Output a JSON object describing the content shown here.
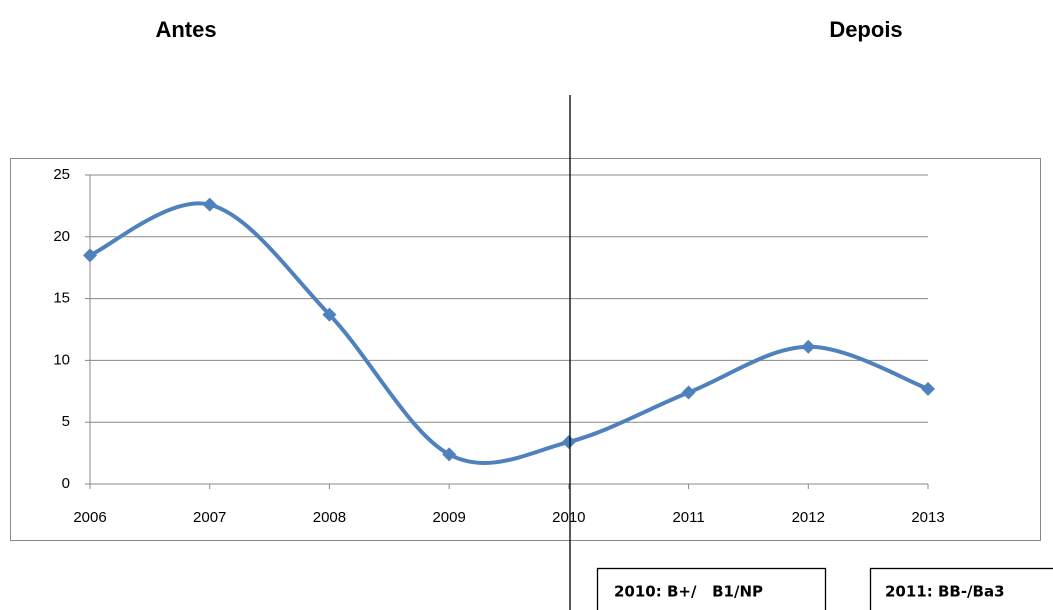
{
  "chart_data": {
    "type": "line",
    "categories": [
      "2006",
      "2007",
      "2008",
      "2009",
      "2010",
      "2011",
      "2012",
      "2013"
    ],
    "series": [
      {
        "color": "#4f81bd",
        "values": [
          18.5,
          22.6,
          13.7,
          2.4,
          3.4,
          7.4,
          11.1,
          7.7
        ]
      }
    ],
    "ylim": [
      0,
      25
    ],
    "yticks": [
      0,
      5,
      10,
      15,
      20,
      25
    ],
    "grid": true
  },
  "annotations": {
    "left_heading": "Antes",
    "right_heading": "Depois",
    "box_2010": "2010: B+/   B1/NP",
    "box_2011": "2011: BB-/Ba3"
  }
}
